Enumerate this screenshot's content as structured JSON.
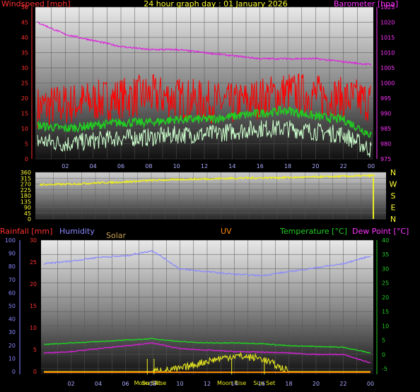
{
  "title": "24 hour graph day : 01 January 2026",
  "colors": {
    "wind": "#ff2020",
    "gust": "#ff0000",
    "avg": "#22cc22",
    "windlow": "#ccffcc",
    "baro": "#dd22dd",
    "dir": "#eeee22",
    "humidity": "#8888ff",
    "temp": "#22cc22",
    "dew": "#cc22cc",
    "rain": "#ff2020",
    "uv": "#ff8800",
    "solar": "#e0e020",
    "text_axis_left": "#ff3030",
    "text_axis_right": "#ff00ff"
  },
  "chart_data": [
    {
      "type": "line",
      "name": "wind-baro",
      "y_left_label": "Windspeed [mph]",
      "y_right_label": "Barometer [hpa]",
      "ylim_left": [
        0,
        50
      ],
      "ylim_right": [
        975,
        1025
      ],
      "y_left_ticks": [
        "0",
        "5",
        "10",
        "15",
        "20",
        "25",
        "30",
        "35",
        "40",
        "45",
        "50"
      ],
      "y_right_ticks": [
        "975",
        "980",
        "985",
        "990",
        "995",
        "1000",
        "1005",
        "1010",
        "1015",
        "1020",
        "1025"
      ],
      "x_ticks": [
        "02",
        "04",
        "06",
        "08",
        "10",
        "12",
        "14",
        "16",
        "18",
        "20",
        "22",
        "00"
      ],
      "x_hours": [
        0,
        2,
        4,
        6,
        8,
        10,
        12,
        14,
        16,
        18,
        20,
        22,
        24
      ],
      "series": [
        {
          "key": "gust",
          "values": [
            17,
            18,
            19,
            20,
            21,
            20,
            19,
            18,
            20,
            22,
            21,
            20,
            19
          ]
        },
        {
          "key": "avg",
          "values": [
            11,
            10,
            11,
            12,
            12,
            13,
            13,
            14,
            15,
            16,
            14,
            13,
            8
          ]
        },
        {
          "key": "windlow",
          "values": [
            6,
            5,
            6,
            7,
            7,
            8,
            8,
            9,
            10,
            10,
            9,
            8,
            3
          ]
        },
        {
          "key": "baro",
          "values": [
            1020,
            1016,
            1014,
            1012,
            1011,
            1011,
            1010,
            1009,
            1008,
            1008,
            1008,
            1007,
            1006
          ]
        }
      ]
    },
    {
      "type": "line",
      "name": "direction",
      "ylim": [
        0,
        360
      ],
      "y_ticks": [
        "0",
        "45",
        "90",
        "135",
        "180",
        "225",
        "270",
        "315",
        "360"
      ],
      "compass": [
        "N",
        "W",
        "S",
        "E",
        "N"
      ],
      "series": [
        {
          "key": "dir",
          "values": [
            265,
            268,
            278,
            285,
            298,
            305,
            310,
            315,
            318,
            320,
            325,
            330,
            335
          ]
        }
      ]
    },
    {
      "type": "line",
      "name": "weather",
      "labels": {
        "rain": "Rainfall [mm]",
        "humidity": "Humidity",
        "solar": "Solar",
        "uv": "UV",
        "temp": "Temperature [°C]",
        "dew": "Dew Point [°C]"
      },
      "y_hum_ticks": [
        "0",
        "10",
        "20",
        "30",
        "40",
        "50",
        "60",
        "70",
        "80",
        "90",
        "100"
      ],
      "y_rain_ticks": [
        "0",
        "5",
        "10",
        "15",
        "20",
        "25",
        "30"
      ],
      "y_temp_ticks": [
        "-5",
        "0",
        "5",
        "10",
        "15",
        "20",
        "25",
        "30",
        "35",
        "40"
      ],
      "ylim_temp": [
        -5,
        40
      ],
      "ylim_hum": [
        0,
        100
      ],
      "x_ticks": [
        "02",
        "04",
        "06",
        "08",
        "10",
        "12",
        "14",
        "16",
        "18",
        "20",
        "22",
        "00"
      ],
      "x_hours": [
        0,
        2,
        4,
        6,
        8,
        10,
        12,
        14,
        16,
        18,
        20,
        22,
        24
      ],
      "markers": [
        {
          "label": "Moon Set",
          "hour": 7.6
        },
        {
          "label": "Sun Rise",
          "hour": 8.1
        },
        {
          "label": "Moon Rise",
          "hour": 13.8
        },
        {
          "label": "Sun Set",
          "hour": 16.2
        }
      ],
      "series": [
        {
          "key": "humidity",
          "values": [
            82,
            84,
            87,
            88,
            92,
            78,
            76,
            74,
            73,
            76,
            79,
            82,
            88
          ]
        },
        {
          "key": "temp",
          "values": [
            3.5,
            4,
            4.5,
            5,
            5.5,
            4.5,
            4,
            4,
            3.8,
            3,
            2.8,
            2.5,
            0.5
          ]
        },
        {
          "key": "dew",
          "values": [
            0.5,
            1,
            2,
            3,
            4,
            2,
            1.5,
            1,
            0.8,
            0.5,
            0,
            0,
            -3
          ]
        },
        {
          "key": "solar",
          "values": [
            0,
            0,
            0,
            0,
            0,
            5,
            20,
            30,
            25,
            0,
            0,
            0,
            0
          ]
        }
      ]
    }
  ]
}
